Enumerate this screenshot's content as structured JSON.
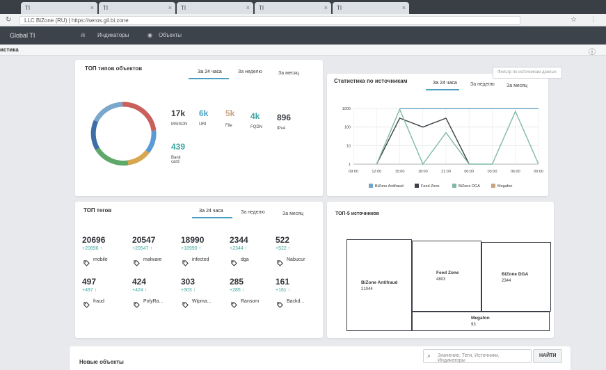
{
  "browser": {
    "tabs": [
      {
        "label": "TI"
      },
      {
        "label": "TI"
      },
      {
        "label": "TI"
      },
      {
        "label": "TI"
      },
      {
        "label": "TI"
      }
    ],
    "address": "LLC BiZone (RU) | https://seros.gil.bi.zone"
  },
  "app": {
    "brand": "Global TI",
    "menu": {
      "indicators": "Индикаторы",
      "objects": "Объекты"
    },
    "section_title": "истика"
  },
  "top_types": {
    "title": "ТОП типов объектов",
    "tabs": [
      "За 24 часа",
      "За неделю",
      "За месяц"
    ],
    "stats": [
      {
        "value": "17k",
        "label": "MSISDN"
      },
      {
        "value": "6k",
        "label": "URI"
      },
      {
        "value": "5k",
        "label": "File"
      },
      {
        "value": "4k",
        "label": "FQDN"
      },
      {
        "value": "896",
        "label": "IPv4"
      },
      {
        "value": "439",
        "label": "Bank card"
      }
    ]
  },
  "source_stats": {
    "title": "Статистика по источникам",
    "tabs": [
      "За 24 часа",
      "За неделю",
      "За месяц"
    ],
    "filter_placeholder": "Фильтр по источникам данных"
  },
  "chart_data": {
    "type": "line",
    "x": [
      "09:00",
      "12:00",
      "15:00",
      "18:00",
      "21:00",
      "00:00",
      "03:00",
      "06:00",
      "09:00"
    ],
    "yticks": [
      "1000",
      "100",
      "10",
      "1"
    ],
    "yscale": "log",
    "ylim": [
      1,
      1000
    ],
    "series": [
      {
        "name": "BiZone Antifraud",
        "color": "#6fa5c9",
        "values": [
          null,
          null,
          1000,
          1000,
          1000,
          1000,
          1000,
          1000,
          1000
        ]
      },
      {
        "name": "Feed Zone",
        "color": "#3e4148",
        "values": [
          null,
          1,
          300,
          100,
          300,
          1,
          null,
          null,
          null
        ]
      },
      {
        "name": "BiZone DGA",
        "color": "#7fb9a3",
        "values": [
          null,
          1,
          900,
          1,
          50,
          1,
          1,
          700,
          1
        ]
      },
      {
        "name": "Megafon",
        "color": "#c9a27e",
        "values": [
          null,
          null,
          null,
          null,
          null,
          null,
          null,
          null,
          null
        ]
      }
    ],
    "grid": true,
    "legend": "bottom"
  },
  "top_tags": {
    "title": "ТОП тегов",
    "tabs": [
      "За 24 часа",
      "За неделю",
      "За месяц"
    ],
    "tags": [
      {
        "value": "20696",
        "delta": "+20696 ↑",
        "name": "mobile"
      },
      {
        "value": "20547",
        "delta": "+20547 ↑",
        "name": "malware"
      },
      {
        "value": "18990",
        "delta": "+18990 ↑",
        "name": "infected"
      },
      {
        "value": "2344",
        "delta": "+2344 ↑",
        "name": "dga"
      },
      {
        "value": "522",
        "delta": "+522 ↑",
        "name": "Nabucur"
      },
      {
        "value": "497",
        "delta": "+497 ↑",
        "name": "fraud"
      },
      {
        "value": "424",
        "delta": "+424 ↑",
        "name": "PolyRa..."
      },
      {
        "value": "303",
        "delta": "+303 ↑",
        "name": "Wipma..."
      },
      {
        "value": "285",
        "delta": "+285 ↑",
        "name": "Ransom"
      },
      {
        "value": "161",
        "delta": "+161 ↑",
        "name": "Backd..."
      }
    ]
  },
  "top5_sources": {
    "title": "ТОП-5 источников",
    "items": [
      {
        "name": "BiZone Antifraud",
        "value": "21044"
      },
      {
        "name": "Feed Zone",
        "value": "4803"
      },
      {
        "name": "BiZone DGA",
        "value": "2344"
      },
      {
        "name": "Megafon",
        "value": "93"
      }
    ]
  },
  "new_objects": {
    "title": "Новые объекты",
    "search_placeholder": "Значение, Теги, Источники, Индикаторы",
    "search_button": "НАЙТИ"
  },
  "colors": {
    "accent": "#4a9ec0",
    "teal": "#3da7a0",
    "nav_bg": "#3d434b"
  }
}
